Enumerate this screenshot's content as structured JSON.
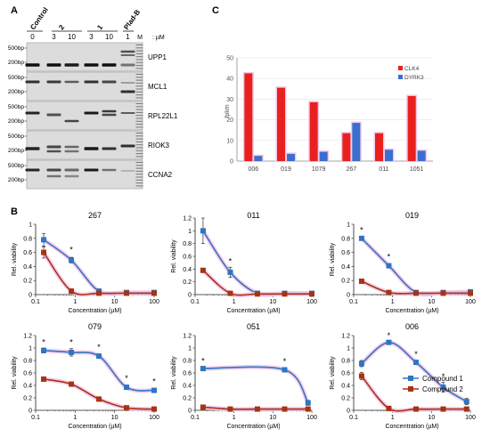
{
  "panel_a": {
    "letter": "A",
    "lane_headers": [
      "Control",
      "2",
      "1",
      "Plad-B"
    ],
    "doses": [
      "0",
      "3",
      "10",
      "3",
      "10",
      "1"
    ],
    "marker_label": "M",
    "unit": ": µM",
    "genes": [
      {
        "name": "UPP1",
        "markers": [
          "500bp",
          "200bp"
        ]
      },
      {
        "name": "MCL1",
        "markers": [
          "500bp",
          "200bp"
        ]
      },
      {
        "name": "RPL22L1",
        "markers": [
          "500bp",
          "200bp"
        ]
      },
      {
        "name": "RIOK3",
        "markers": [
          "500bp",
          "200bp"
        ]
      },
      {
        "name": "CCNA2",
        "markers": [
          "500bp",
          "200bp"
        ]
      }
    ]
  },
  "panel_b": {
    "letter": "B",
    "legend": [
      "Compound 1",
      "Compound 2"
    ],
    "colors": {
      "compound1": "#2e75c5",
      "compound2": "#a83214",
      "halo": "#f2c3e6"
    }
  },
  "panel_c": {
    "letter": "C"
  },
  "chart_data": [
    {
      "type": "bar",
      "title": "",
      "ylabel": "fpkm",
      "ylim": [
        0,
        50
      ],
      "yticks": [
        0,
        10,
        20,
        30,
        40,
        50
      ],
      "categories": [
        "006",
        "019",
        "1079",
        "267",
        "011",
        "1051"
      ],
      "series": [
        {
          "name": "CLK4",
          "color": "#e8211e",
          "values": [
            42.5,
            35.5,
            28.5,
            13.5,
            13.5,
            31.5
          ]
        },
        {
          "name": "DYRK3",
          "color": "#3a6fcf",
          "values": [
            2.5,
            3.5,
            4.5,
            18.5,
            5.5,
            5.0
          ]
        }
      ]
    },
    {
      "type": "line",
      "title": "267",
      "xlabel": "Concentration (µM)",
      "ylabel": "Rel. viability",
      "xscale": "log",
      "xlim": [
        0.1,
        100
      ],
      "ylim": [
        0,
        1
      ],
      "xticks": [
        0.1,
        1,
        10,
        100
      ],
      "yticks": [
        0,
        0.2,
        0.4,
        0.6,
        0.8,
        1
      ],
      "series": [
        {
          "name": "Compound 1",
          "x": [
            0.16,
            0.8,
            4,
            20,
            100
          ],
          "y": [
            0.78,
            0.49,
            0.05,
            0.03,
            0.03
          ],
          "err": [
            0.09,
            0.04,
            0.02,
            0.01,
            0.01
          ]
        },
        {
          "name": "Compound 2",
          "x": [
            0.16,
            0.8,
            4,
            20,
            100
          ],
          "y": [
            0.6,
            0.05,
            0.02,
            0.02,
            0.02
          ],
          "err": [
            0.08,
            0.02,
            0.01,
            0.01,
            0.01
          ]
        }
      ],
      "stars": [
        {
          "x": 0.8,
          "y": 0.6,
          "text": "*"
        }
      ]
    },
    {
      "type": "line",
      "title": "011",
      "xlabel": "Concentration (µM)",
      "ylabel": "Rel. viability",
      "xscale": "log",
      "xlim": [
        0.1,
        100
      ],
      "ylim": [
        0,
        1.2
      ],
      "xticks": [
        0.1,
        1,
        10,
        100
      ],
      "yticks": [
        0,
        0.2,
        0.4,
        0.6,
        0.8,
        1,
        1.2
      ],
      "series": [
        {
          "name": "Compound 1",
          "x": [
            0.16,
            0.8,
            4,
            20,
            100
          ],
          "y": [
            1.0,
            0.35,
            0.02,
            0.02,
            0.02
          ],
          "err": [
            0.2,
            0.08,
            0.01,
            0.01,
            0.01
          ]
        },
        {
          "name": "Compound 2",
          "x": [
            0.16,
            0.8,
            4,
            20,
            100
          ],
          "y": [
            0.38,
            0.02,
            0.01,
            0.01,
            0.01
          ],
          "err": [
            0.03,
            0.01,
            0.01,
            0.01,
            0.01
          ]
        }
      ],
      "stars": [
        {
          "x": 0.8,
          "y": 0.48,
          "text": "*"
        }
      ]
    },
    {
      "type": "line",
      "title": "019",
      "xlabel": "Concentration (µM)",
      "ylabel": "Rel. viability",
      "xscale": "log",
      "xlim": [
        0.1,
        100
      ],
      "ylim": [
        0,
        1
      ],
      "xticks": [
        0.1,
        1,
        10,
        100
      ],
      "yticks": [
        0,
        0.2,
        0.4,
        0.6,
        0.8,
        1
      ],
      "series": [
        {
          "name": "Compound 1",
          "x": [
            0.16,
            0.8,
            4,
            20,
            100
          ],
          "y": [
            0.8,
            0.41,
            0.03,
            0.03,
            0.04
          ],
          "err": [
            0.02,
            0.02,
            0.01,
            0.01,
            0.01
          ]
        },
        {
          "name": "Compound 2",
          "x": [
            0.16,
            0.8,
            4,
            20,
            100
          ],
          "y": [
            0.19,
            0.03,
            0.02,
            0.02,
            0.02
          ],
          "err": [
            0.02,
            0.01,
            0.01,
            0.01,
            0.01
          ]
        }
      ],
      "stars": [
        {
          "x": 0.16,
          "y": 0.88,
          "text": "*"
        },
        {
          "x": 0.8,
          "y": 0.5,
          "text": "*"
        }
      ]
    },
    {
      "type": "line",
      "title": "079",
      "xlabel": "Concentration (µM)",
      "ylabel": "Rel. viability",
      "xscale": "log",
      "xlim": [
        0.1,
        100
      ],
      "ylim": [
        0,
        1.2
      ],
      "xticks": [
        0.1,
        1,
        10,
        100
      ],
      "yticks": [
        0,
        0.2,
        0.4,
        0.6,
        0.8,
        1,
        1.2
      ],
      "series": [
        {
          "name": "Compound 1",
          "x": [
            0.16,
            0.8,
            4,
            20,
            100
          ],
          "y": [
            0.96,
            0.93,
            0.87,
            0.37,
            0.32
          ],
          "err": [
            0.04,
            0.06,
            0.03,
            0.03,
            0.03
          ]
        },
        {
          "name": "Compound 2",
          "x": [
            0.16,
            0.8,
            4,
            20,
            100
          ],
          "y": [
            0.5,
            0.42,
            0.18,
            0.04,
            0.02
          ],
          "err": [
            0.03,
            0.02,
            0.02,
            0.01,
            0.01
          ]
        }
      ],
      "stars": [
        {
          "x": 0.16,
          "y": 1.05,
          "text": "*"
        },
        {
          "x": 0.8,
          "y": 1.05,
          "text": "*"
        },
        {
          "x": 4,
          "y": 0.97,
          "text": "*"
        },
        {
          "x": 20,
          "y": 0.47,
          "text": "*"
        },
        {
          "x": 100,
          "y": 0.42,
          "text": "*"
        }
      ]
    },
    {
      "type": "line",
      "title": "051",
      "xlabel": "Concentration (µM)",
      "ylabel": "Rel. viability",
      "xscale": "log",
      "xlim": [
        0.1,
        100
      ],
      "ylim": [
        0,
        1.2
      ],
      "xticks": [
        0.1,
        1,
        10,
        100
      ],
      "yticks": [
        0,
        0.2,
        0.4,
        0.6,
        0.8,
        1,
        1.2
      ],
      "series": [
        {
          "name": "Compound 1",
          "x": [
            0.16,
            20,
            80
          ],
          "y": [
            0.67,
            0.65,
            0.12
          ],
          "err": [
            0.02,
            0.02,
            0.04
          ]
        },
        {
          "name": "Compound 2",
          "x": [
            0.16,
            0.8,
            4,
            20,
            80
          ],
          "y": [
            0.05,
            0.02,
            0.02,
            0.02,
            0.02
          ],
          "err": [
            0.01,
            0.01,
            0.01,
            0.01,
            0.01
          ]
        }
      ],
      "stars": [
        {
          "x": 0.16,
          "y": 0.75,
          "text": "*"
        },
        {
          "x": 20,
          "y": 0.74,
          "text": "*"
        }
      ]
    },
    {
      "type": "line",
      "title": "006",
      "xlabel": "Concentration (µM)",
      "ylabel": "Rel. viability",
      "xscale": "log",
      "xlim": [
        0.1,
        100
      ],
      "ylim": [
        0,
        1.2
      ],
      "xticks": [
        0.1,
        1,
        10,
        100
      ],
      "yticks": [
        0,
        0.2,
        0.4,
        0.6,
        0.8,
        1,
        1.2
      ],
      "series": [
        {
          "name": "Compound 1",
          "x": [
            0.16,
            0.8,
            4,
            20,
            80
          ],
          "y": [
            0.75,
            1.09,
            0.77,
            0.37,
            0.14
          ],
          "err": [
            0.05,
            0.02,
            0.03,
            0.08,
            0.05
          ]
        },
        {
          "name": "Compound 2",
          "x": [
            0.16,
            0.8,
            4,
            20,
            80
          ],
          "y": [
            0.55,
            0.03,
            0.02,
            0.02,
            0.02
          ],
          "err": [
            0.06,
            0.01,
            0.01,
            0.01,
            0.01
          ]
        }
      ],
      "stars": [
        {
          "x": 0.8,
          "y": 1.16,
          "text": "*"
        },
        {
          "x": 4,
          "y": 0.86,
          "text": "*"
        },
        {
          "x": 20,
          "y": 0.5,
          "text": "*"
        }
      ]
    }
  ]
}
